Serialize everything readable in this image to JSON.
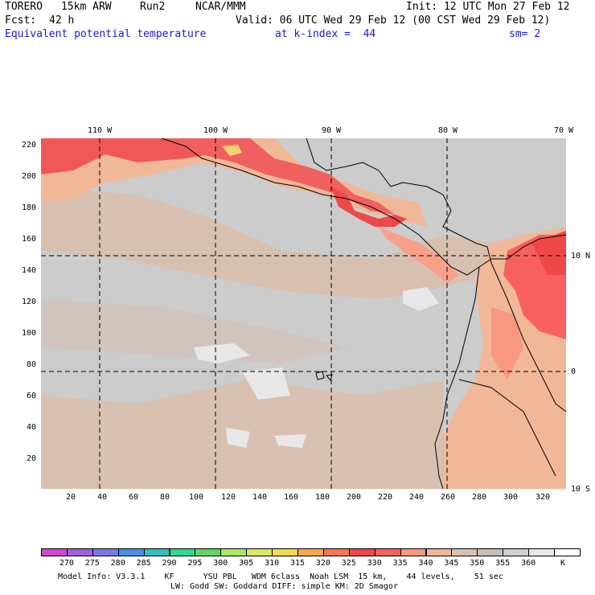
{
  "header": {
    "model": "TORERO",
    "resolution": "15km ARW",
    "run": "Run2",
    "org": "NCAR/MMM",
    "init": "Init: 12 UTC Mon 27 Feb 12",
    "fcst_label": "Fcst:",
    "fcst_value": "42 h",
    "valid": "Valid: 06 UTC Wed 29 Feb 12 (00 CST Wed 29 Feb 12)",
    "field": "Equivalent potential temperature",
    "level": "at k-index =  44",
    "smoothing": "sm= 2"
  },
  "map": {
    "top_lon_labels": [
      "110 W",
      "100 W",
      "90 W",
      "80 W",
      "70 W"
    ],
    "right_lat_labels": [
      "10 N",
      "0",
      "10 S"
    ],
    "y_ticks": [
      "220",
      "200",
      "180",
      "160",
      "140",
      "120",
      "100",
      "80",
      "60",
      "40",
      "20"
    ],
    "x_ticks": [
      "20",
      "40",
      "60",
      "80",
      "100",
      "120",
      "140",
      "160",
      "180",
      "200",
      "220",
      "240",
      "260",
      "280",
      "300",
      "320"
    ],
    "grid_lon_values": [
      110,
      100,
      90,
      80
    ],
    "grid_lat_values": [
      10,
      0
    ],
    "ocean_color": "#cccccc"
  },
  "colorbar": {
    "unit": "K",
    "colors": [
      "#d048d0",
      "#a060d8",
      "#7878e8",
      "#4890e8",
      "#30c0c0",
      "#30d890",
      "#60d860",
      "#a8e860",
      "#d8e860",
      "#f8d850",
      "#f8a850",
      "#f87850",
      "#f04848",
      "#f86060",
      "#f89880",
      "#f0b898",
      "#d8c0b0",
      "#c8c0b8",
      "#d0d0d0",
      "#e8e8e8",
      "#ffffff"
    ],
    "labels": [
      "270",
      "275",
      "280",
      "285",
      "290",
      "295",
      "300",
      "305",
      "310",
      "315",
      "320",
      "325",
      "330",
      "335",
      "340",
      "345",
      "350",
      "355",
      "360"
    ]
  },
  "footer": {
    "line1": "Model Info: V3.3.1    KF      YSU PBL   WDM 6class  Noah LSM  15 km,    44 levels,    51 sec",
    "line2": "LW: Godd SW: Goddard DIFF: simple KM: 2D Smagor"
  }
}
